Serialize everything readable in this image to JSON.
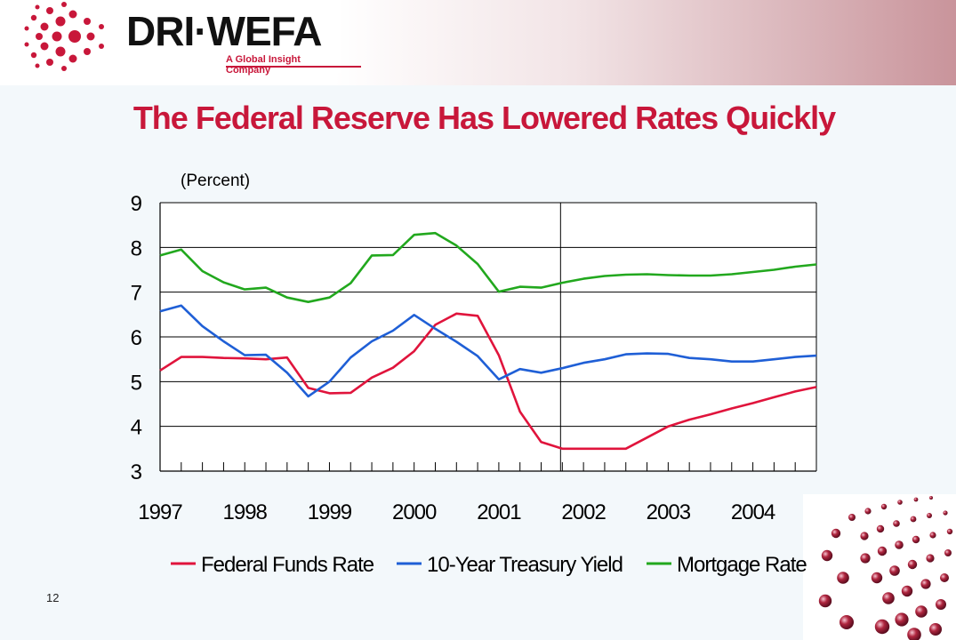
{
  "header": {
    "logo_text": "DRI·WEFA",
    "logo_tagline": "A Global Insight Company"
  },
  "title": "The Federal Reserve Has Lowered Rates Quickly",
  "page_number": "12",
  "colors": {
    "title": "#c8173a",
    "federal_funds": "#e0143c",
    "treasury": "#1f5fd6",
    "mortgage": "#22a81e"
  },
  "chart_data": {
    "type": "line",
    "title": "The Federal Reserve Has Lowered Rates Quickly",
    "ylabel": "(Percent)",
    "ylim": [
      3,
      9
    ],
    "yticks": [
      3,
      4,
      5,
      6,
      7,
      8,
      9
    ],
    "xlim": [
      1997.0,
      2004.75
    ],
    "x_tick_labels": [
      "1997",
      "1998",
      "1999",
      "2000",
      "2001",
      "2002",
      "2003",
      "2004"
    ],
    "x": [
      1997.0,
      1997.25,
      1997.5,
      1997.75,
      1998.0,
      1998.25,
      1998.5,
      1998.75,
      1999.0,
      1999.25,
      1999.5,
      1999.75,
      2000.0,
      2000.25,
      2000.5,
      2000.75,
      2001.0,
      2001.25,
      2001.5,
      2001.75,
      2002.0,
      2002.25,
      2002.5,
      2002.75,
      2003.0,
      2003.25,
      2003.5,
      2003.75,
      2004.0,
      2004.25,
      2004.5,
      2004.75
    ],
    "series": [
      {
        "name": "Federal Funds Rate",
        "color": "#e0143c",
        "values": [
          5.25,
          5.55,
          5.55,
          5.53,
          5.52,
          5.5,
          5.54,
          4.86,
          4.74,
          4.75,
          5.09,
          5.31,
          5.68,
          6.27,
          6.52,
          6.47,
          5.59,
          4.33,
          3.65,
          3.5,
          3.5,
          3.5,
          3.5,
          3.75,
          4.0,
          4.15,
          4.27,
          4.4,
          4.52,
          4.65,
          4.78,
          4.88
        ]
      },
      {
        "name": "10-Year Treasury Yield",
        "color": "#1f5fd6",
        "values": [
          6.57,
          6.7,
          6.24,
          5.9,
          5.59,
          5.6,
          5.2,
          4.67,
          5.0,
          5.54,
          5.9,
          6.14,
          6.49,
          6.18,
          5.89,
          5.57,
          5.05,
          5.28,
          5.2,
          5.3,
          5.42,
          5.5,
          5.61,
          5.63,
          5.62,
          5.53,
          5.5,
          5.45,
          5.45,
          5.5,
          5.55,
          5.58
        ]
      },
      {
        "name": "Mortgage Rate",
        "color": "#22a81e",
        "values": [
          7.82,
          7.95,
          7.47,
          7.22,
          7.06,
          7.1,
          6.88,
          6.78,
          6.88,
          7.2,
          7.82,
          7.83,
          8.28,
          8.32,
          8.04,
          7.63,
          7.01,
          7.12,
          7.1,
          7.21,
          7.3,
          7.36,
          7.39,
          7.4,
          7.38,
          7.37,
          7.37,
          7.4,
          7.45,
          7.5,
          7.57,
          7.62
        ]
      }
    ],
    "forecast_start": 2001.75,
    "grid": "horizontal",
    "legend_position": "bottom"
  }
}
